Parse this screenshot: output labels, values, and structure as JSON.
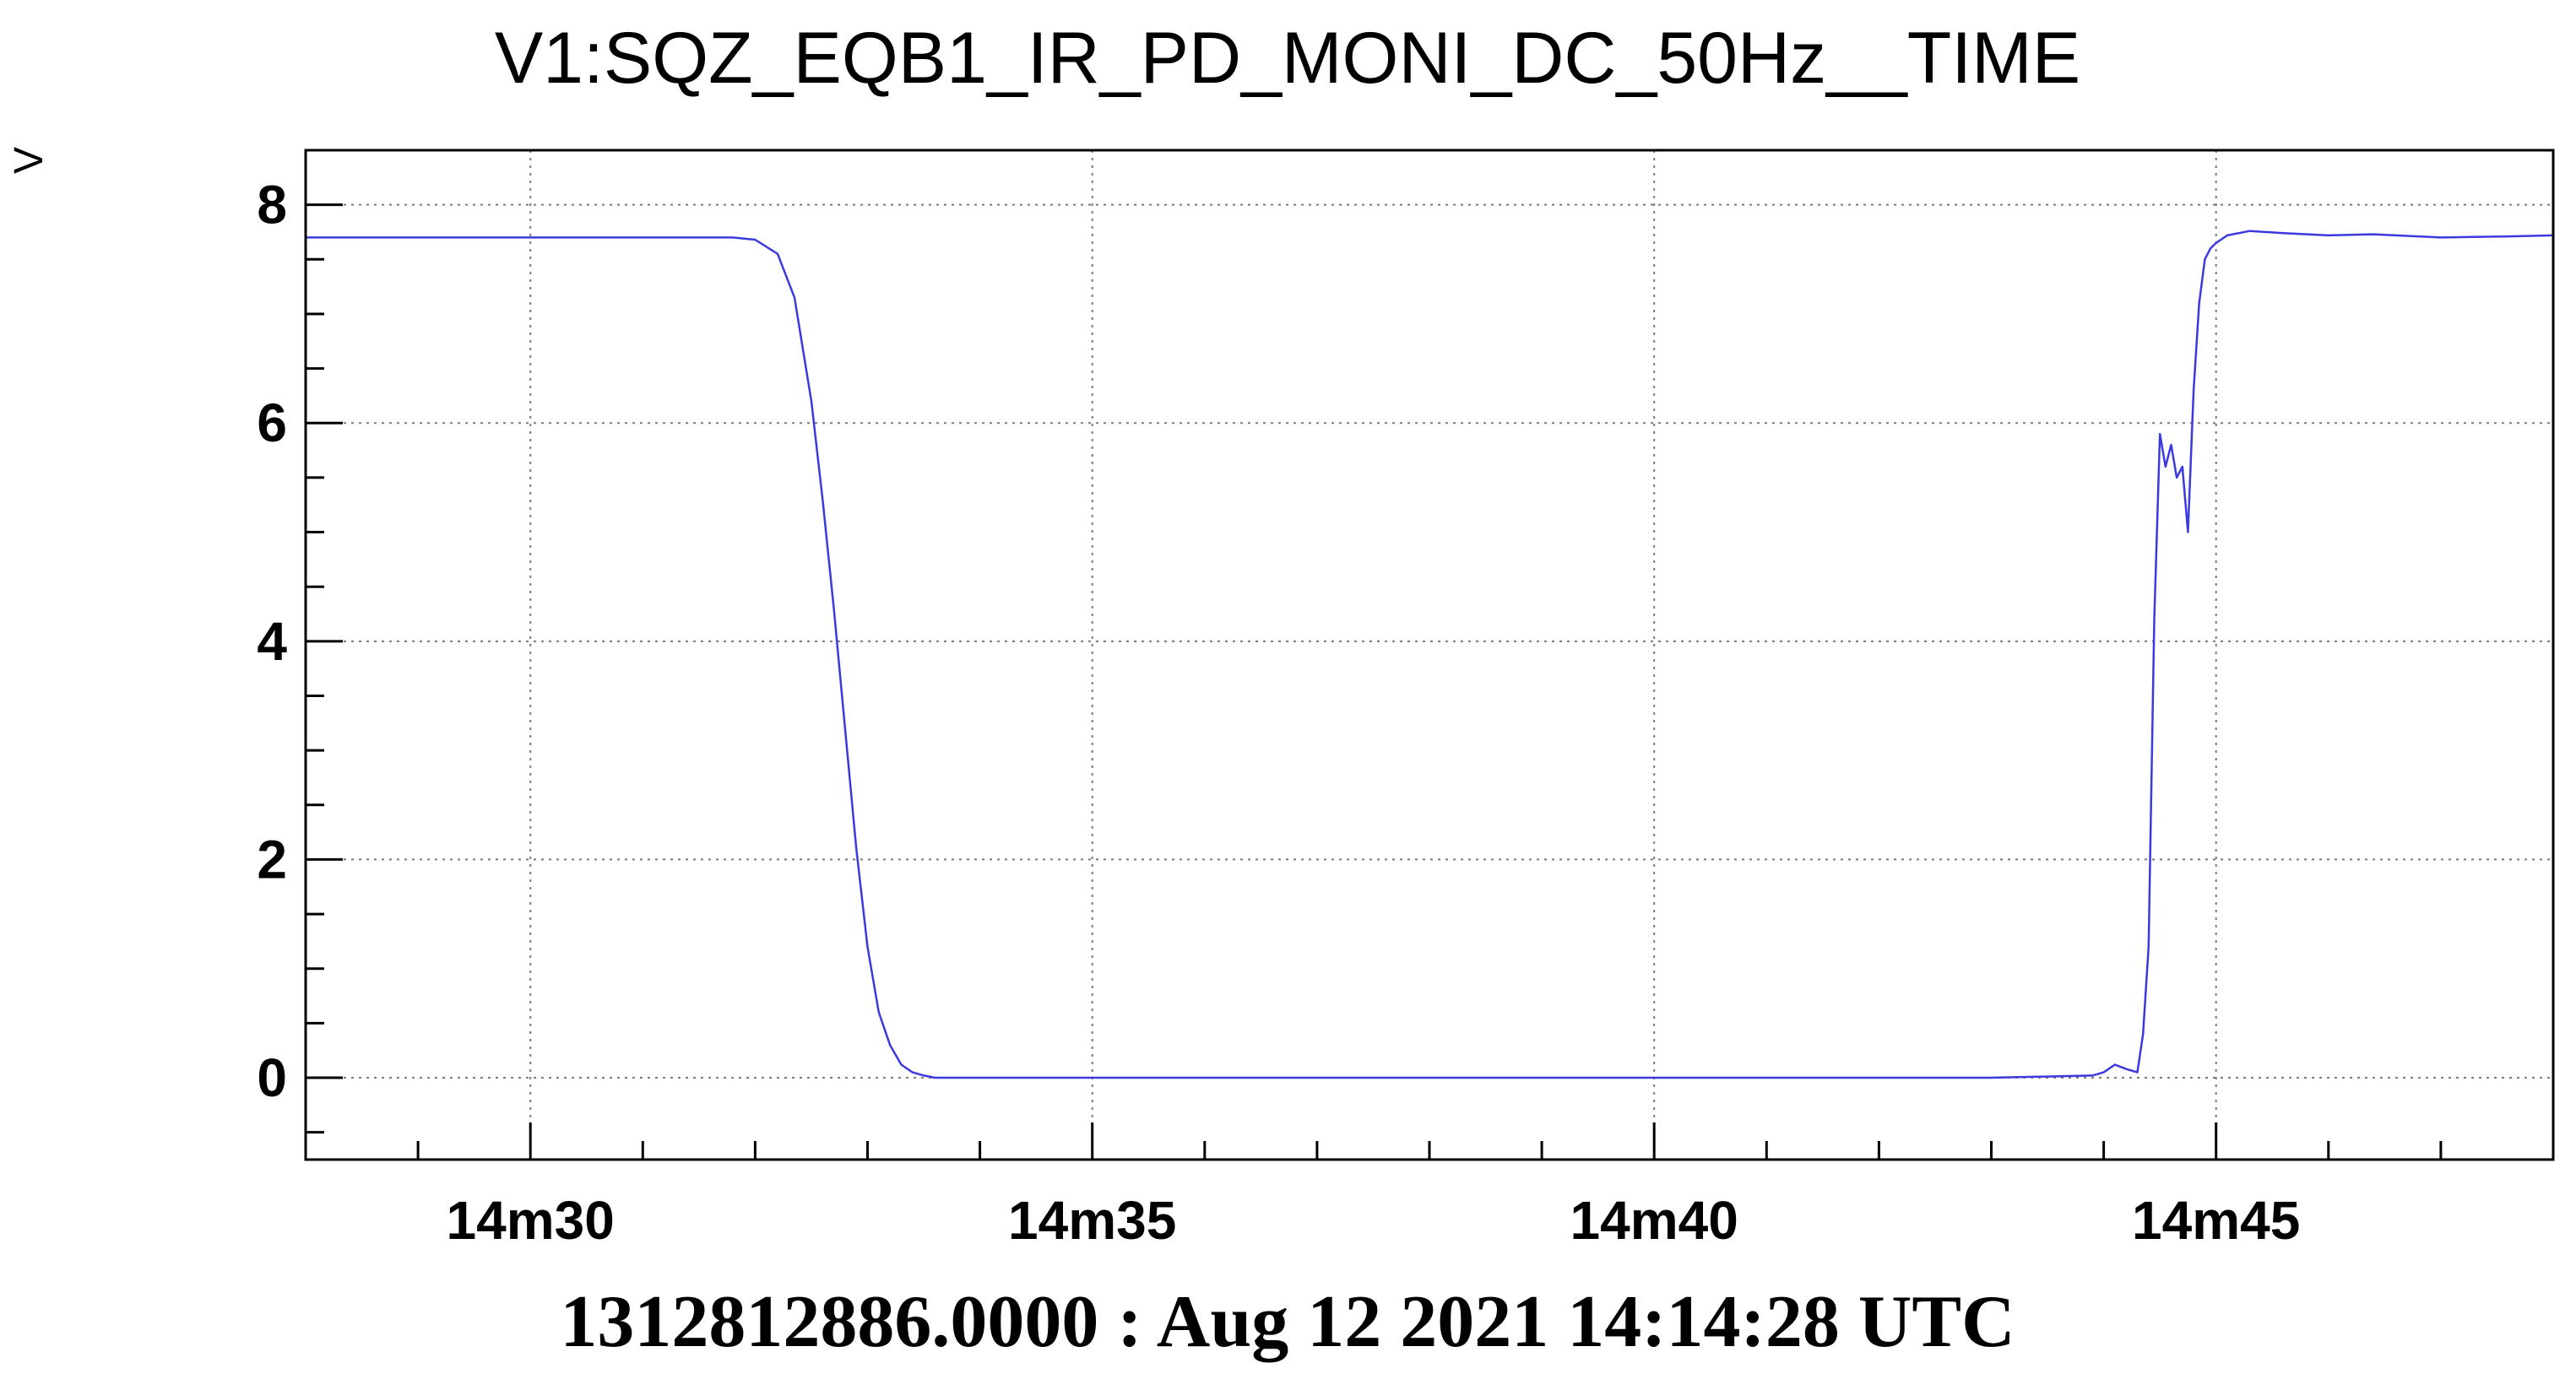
{
  "chart_data": {
    "type": "line",
    "title": "V1:SQZ_EQB1_IR_PD_MONI_DC_50Hz__TIME",
    "ylabel": "V",
    "xlabel": "",
    "footer": "1312812886.0000 : Aug 12 2021 14:14:28 UTC",
    "grid": true,
    "xlim": [
      28.0,
      48.0
    ],
    "ylim": [
      -0.75,
      8.5
    ],
    "xticks": [
      {
        "value": 30,
        "label": "14m30"
      },
      {
        "value": 35,
        "label": "14m35"
      },
      {
        "value": 40,
        "label": "14m40"
      },
      {
        "value": 45,
        "label": "14m45"
      }
    ],
    "yticks": [
      {
        "value": 0,
        "label": "0"
      },
      {
        "value": 2,
        "label": "2"
      },
      {
        "value": 4,
        "label": "4"
      },
      {
        "value": 6,
        "label": "6"
      },
      {
        "value": 8,
        "label": "8"
      }
    ],
    "color": "#3a3ae0",
    "series": [
      {
        "x": [
          28.0,
          30.2,
          31.0,
          31.8,
          32.0,
          32.2,
          32.35,
          32.5,
          32.6,
          32.7,
          32.8,
          32.9,
          33.0,
          33.1,
          33.2,
          33.3,
          33.4,
          33.5,
          33.6,
          33.8,
          34.0,
          36.0,
          40.0,
          43.0,
          43.9,
          44.0,
          44.1,
          44.2,
          44.3,
          44.35,
          44.4,
          44.45,
          44.5,
          44.55,
          44.6,
          44.65,
          44.7,
          44.75,
          44.8,
          44.85,
          44.9,
          44.95,
          45.0,
          45.1,
          45.3,
          45.6,
          46.0,
          46.4,
          47.0,
          47.6,
          48.0
        ],
        "y": [
          7.7,
          7.7,
          7.7,
          7.7,
          7.68,
          7.55,
          7.15,
          6.2,
          5.3,
          4.3,
          3.2,
          2.1,
          1.2,
          0.6,
          0.3,
          0.12,
          0.05,
          0.02,
          0.0,
          0.0,
          0.0,
          0.0,
          0.0,
          0.0,
          0.02,
          0.05,
          0.12,
          0.08,
          0.05,
          0.4,
          1.2,
          4.2,
          5.9,
          5.6,
          5.8,
          5.5,
          5.6,
          5.0,
          6.3,
          7.1,
          7.5,
          7.6,
          7.65,
          7.72,
          7.76,
          7.74,
          7.72,
          7.73,
          7.7,
          7.71,
          7.72
        ]
      }
    ]
  }
}
